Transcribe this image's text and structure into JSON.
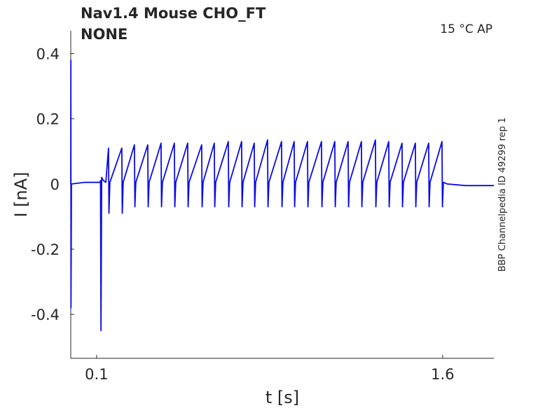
{
  "chart_data": {
    "type": "line",
    "title": "Nav1.4  Mouse  CHO_FT",
    "subtitle": "NONE",
    "annotations": [
      "15 °C  AP",
      "BBP Channelpedia ID 49299 rep 1"
    ],
    "x_label": "t [s]",
    "y_label": "I [nA]",
    "xlim": [
      -0.012,
      1.822
    ],
    "ylim": [
      -0.535,
      0.47
    ],
    "xticks": [
      0.1,
      1.6
    ],
    "yticks": [
      -0.4,
      -0.2,
      0,
      0.2,
      0.4
    ],
    "series": [
      {
        "name": "I",
        "color": "#0a0ae6",
        "x": [
          -0.012,
          -0.0115,
          -0.011,
          -0.009,
          0.05,
          0.115,
          0.117,
          0.119,
          0.122,
          0.13,
          0.14,
          0.1516,
          0.1536,
          0.1576,
          0.2093,
          0.2113,
          0.2153,
          0.264,
          0.266,
          0.27,
          0.3217,
          0.3237,
          0.3277,
          0.3794,
          0.3814,
          0.3854,
          0.4371,
          0.4391,
          0.4431,
          0.4948,
          0.4968,
          0.5008,
          0.5555,
          0.5575,
          0.5615,
          0.6102,
          0.6122,
          0.6162,
          0.6709,
          0.6729,
          0.6769,
          0.7286,
          0.7306,
          0.7346,
          0.7833,
          0.7853,
          0.7893,
          0.841,
          0.843,
          0.847,
          0.9017,
          0.9037,
          0.9077,
          0.9564,
          0.9584,
          0.9624,
          1.0141,
          1.0161,
          1.0201,
          1.0748,
          1.0768,
          1.0808,
          1.1325,
          1.1345,
          1.1385,
          1.1902,
          1.1922,
          1.1962,
          1.2479,
          1.2499,
          1.2539,
          1.3086,
          1.3106,
          1.3146,
          1.3663,
          1.3683,
          1.3723,
          1.424,
          1.426,
          1.43,
          1.4817,
          1.4837,
          1.4877,
          1.5394,
          1.5414,
          1.5454,
          1.5971,
          1.5991,
          1.6031,
          1.62,
          1.7,
          1.822
        ],
        "values": [
          0,
          0.38,
          -0.38,
          0,
          0.005,
          0.005,
          0.01,
          -0.45,
          0.02,
          0.01,
          0.005,
          0.11,
          -0.09,
          0.005,
          0.11,
          -0.09,
          0.005,
          0.12,
          -0.07,
          0.005,
          0.12,
          -0.07,
          0.005,
          0.125,
          -0.07,
          0.005,
          0.125,
          -0.07,
          0.005,
          0.125,
          -0.07,
          0.005,
          0.12,
          -0.07,
          0.005,
          0.125,
          -0.07,
          0.005,
          0.13,
          -0.07,
          0.005,
          0.13,
          -0.07,
          0.005,
          0.125,
          -0.07,
          0.005,
          0.135,
          -0.07,
          0.005,
          0.13,
          -0.07,
          0.005,
          0.13,
          -0.07,
          0.005,
          0.13,
          -0.07,
          0.005,
          0.13,
          -0.07,
          0.005,
          0.13,
          -0.07,
          0.005,
          0.13,
          -0.07,
          0.005,
          0.13,
          -0.07,
          0.005,
          0.135,
          -0.07,
          0.005,
          0.13,
          -0.07,
          0.005,
          0.125,
          -0.07,
          0.005,
          0.125,
          -0.07,
          0.005,
          0.125,
          -0.07,
          0.005,
          0.13,
          -0.07,
          0.005,
          0,
          -0.005,
          -0.005
        ]
      }
    ]
  }
}
